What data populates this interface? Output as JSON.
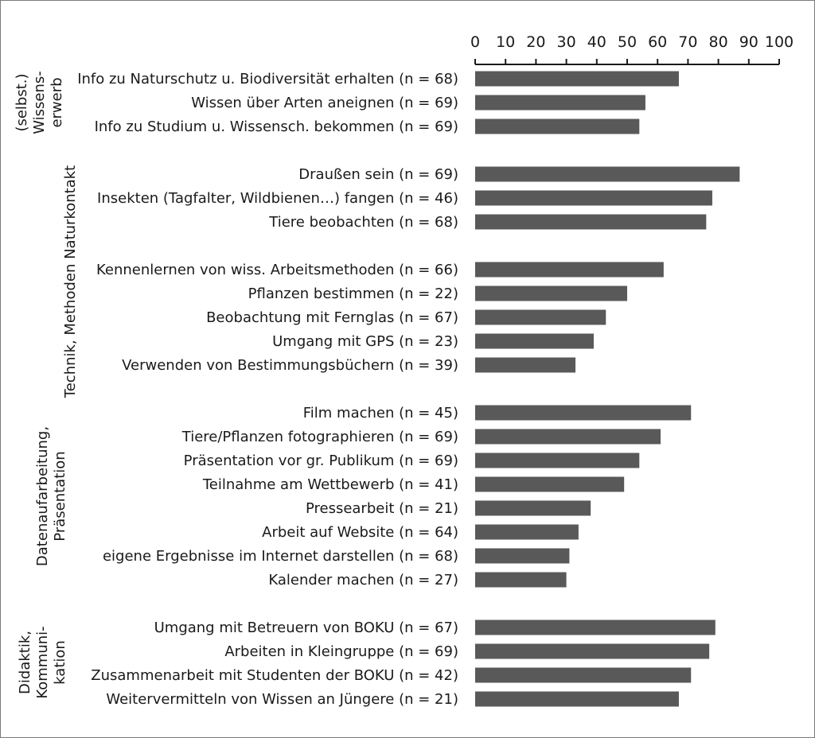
{
  "chart_data": {
    "type": "bar",
    "orientation": "horizontal",
    "xlim": [
      0,
      100
    ],
    "xticks": [
      "0",
      "10",
      "20",
      "30",
      "40",
      "50",
      "60",
      "70",
      "80",
      "90",
      "100"
    ],
    "axis_position": "top",
    "grid": false,
    "bar_color": "#595959",
    "groups": [
      {
        "label_lines": [
          "(selbst.)",
          "Wissens-",
          "erwerb"
        ],
        "categories": [
          "Info zu Naturschutz u. Biodiversität erhalten (n = 68)",
          "Wissen über Arten aneignen (n = 69)",
          "Info zu Studium u. Wissensch. bekommen (n = 69)"
        ],
        "values": [
          67,
          56,
          54
        ]
      },
      {
        "label_lines": [
          "Technik, Methoden Naturkontakt"
        ],
        "categories": [
          "Draußen sein (n = 69)",
          "Insekten (Tagfalter, Wildbienen…) fangen (n = 46)",
          "Tiere beobachten (n = 68)",
          "Kennenlernen von wiss. Arbeitsmethoden (n = 66)",
          "Pflanzen bestimmen (n = 22)",
          "Beobachtung mit Fernglas (n = 67)",
          "Umgang mit GPS (n = 23)",
          "Verwenden von Bestimmungsbüchern (n = 39)"
        ],
        "values": [
          87,
          78,
          76,
          62,
          50,
          43,
          39,
          33
        ]
      },
      {
        "label_lines": [
          "Datenaufarbeitung,",
          "Präsentation"
        ],
        "categories": [
          "Film machen (n = 45)",
          "Tiere/Pflanzen fotographieren (n = 69)",
          "Präsentation vor gr. Publikum (n = 69)",
          "Teilnahme am Wettbewerb (n = 41)",
          "Pressearbeit (n = 21)",
          "Arbeit auf Website (n = 64)",
          "eigene Ergebnisse im Internet darstellen (n = 68)",
          "Kalender machen (n = 27)"
        ],
        "values": [
          71,
          61,
          54,
          49,
          38,
          34,
          31,
          30
        ]
      },
      {
        "label_lines": [
          "Didaktik,",
          "Kommuni-",
          "kation"
        ],
        "categories": [
          "Umgang mit Betreuern von BOKU (n = 67)",
          "Arbeiten in Kleingruppe (n = 69)",
          "Zusammenarbeit mit Studenten der BOKU (n = 42)",
          "Weitervermitteln von Wissen an Jüngere (n = 21)"
        ],
        "values": [
          79,
          77,
          71,
          67
        ]
      }
    ]
  }
}
